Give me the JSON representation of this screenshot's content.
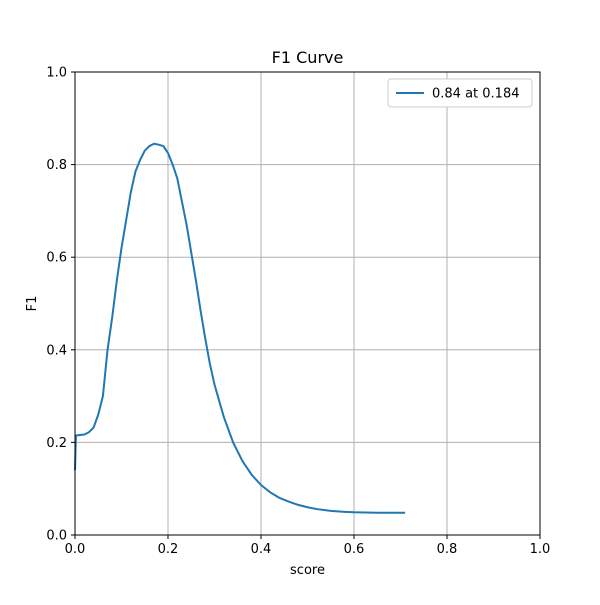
{
  "chart_data": {
    "type": "line",
    "title": "F1 Curve",
    "xlabel": "score",
    "ylabel": "F1",
    "xlim": [
      0.0,
      1.0
    ],
    "ylim": [
      0.0,
      1.0
    ],
    "xticks": [
      0.0,
      0.2,
      0.4,
      0.6,
      0.8,
      1.0
    ],
    "yticks": [
      0.0,
      0.2,
      0.4,
      0.6,
      0.8,
      1.0
    ],
    "xtick_labels": [
      "0.0",
      "0.2",
      "0.4",
      "0.6",
      "0.8",
      "1.0"
    ],
    "ytick_labels": [
      "0.0",
      "0.2",
      "0.4",
      "0.6",
      "0.8",
      "1.0"
    ],
    "grid": true,
    "legend_position": "top-right",
    "series": [
      {
        "name": "0.84 at 0.184",
        "color": "#1f77b4",
        "x": [
          0.0,
          0.002,
          0.02,
          0.03,
          0.04,
          0.05,
          0.06,
          0.065,
          0.07,
          0.08,
          0.09,
          0.1,
          0.11,
          0.12,
          0.13,
          0.14,
          0.15,
          0.16,
          0.17,
          0.18,
          0.19,
          0.2,
          0.21,
          0.22,
          0.23,
          0.24,
          0.25,
          0.26,
          0.27,
          0.28,
          0.29,
          0.3,
          0.32,
          0.34,
          0.36,
          0.38,
          0.4,
          0.42,
          0.44,
          0.46,
          0.48,
          0.5,
          0.52,
          0.55,
          0.58,
          0.6,
          0.65,
          0.71
        ],
        "y": [
          0.14,
          0.215,
          0.217,
          0.222,
          0.232,
          0.26,
          0.3,
          0.35,
          0.4,
          0.47,
          0.55,
          0.62,
          0.68,
          0.74,
          0.785,
          0.81,
          0.83,
          0.84,
          0.845,
          0.843,
          0.84,
          0.825,
          0.8,
          0.77,
          0.72,
          0.67,
          0.61,
          0.55,
          0.485,
          0.425,
          0.37,
          0.325,
          0.255,
          0.2,
          0.16,
          0.13,
          0.108,
          0.092,
          0.08,
          0.072,
          0.065,
          0.06,
          0.056,
          0.052,
          0.05,
          0.049,
          0.048,
          0.048
        ]
      }
    ]
  }
}
